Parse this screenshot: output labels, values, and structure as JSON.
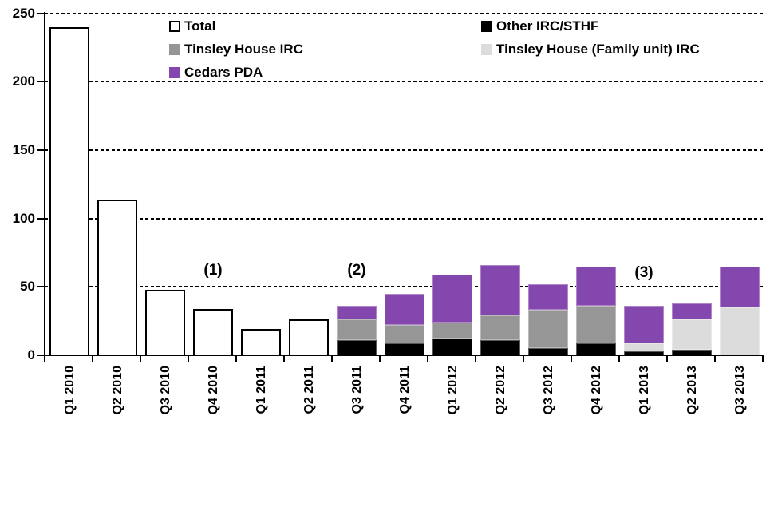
{
  "chart_data": {
    "type": "bar",
    "stacked": true,
    "title": "",
    "xlabel": "",
    "ylabel": "",
    "ylim": [
      0,
      250
    ],
    "yticks": [
      0,
      50,
      100,
      150,
      200,
      250
    ],
    "grid": "horizontal-dashed",
    "categories": [
      "Q1 2010",
      "Q2 2010",
      "Q3 2010",
      "Q4 2010",
      "Q1 2011",
      "Q2 2011",
      "Q3 2011",
      "Q4 2011",
      "Q1 2012",
      "Q2 2012",
      "Q3 2012",
      "Q4 2012",
      "Q1 2013",
      "Q2 2013",
      "Q3 2013"
    ],
    "series": [
      {
        "name": "Total",
        "color": "#ffffff",
        "border_color": "#000000",
        "values": [
          240,
          114,
          48,
          34,
          19,
          26,
          0,
          0,
          0,
          0,
          0,
          0,
          0,
          0,
          0
        ]
      },
      {
        "name": "Other IRC/STHF",
        "color": "#000000",
        "values": [
          0,
          0,
          0,
          0,
          0,
          0,
          11,
          9,
          12,
          11,
          5,
          9,
          3,
          4,
          0
        ]
      },
      {
        "name": "Tinsley House IRC",
        "color": "#969696",
        "values": [
          0,
          0,
          0,
          0,
          0,
          0,
          15,
          13,
          12,
          18,
          28,
          27,
          0,
          0,
          0
        ]
      },
      {
        "name": "Tinsley House (Family unit) IRC",
        "color": "#dcdcdc",
        "values": [
          0,
          0,
          0,
          0,
          0,
          0,
          0,
          0,
          0,
          0,
          0,
          0,
          6,
          22,
          35
        ]
      },
      {
        "name": "Cedars PDA",
        "color": "#8447ad",
        "values": [
          0,
          0,
          0,
          0,
          0,
          0,
          10,
          23,
          35,
          37,
          19,
          29,
          27,
          12,
          30
        ]
      }
    ],
    "annotations": [
      {
        "text": "(1)",
        "category": "Q4 2010",
        "y_value": 62
      },
      {
        "text": "(2)",
        "category": "Q3 2011",
        "y_value": 62
      },
      {
        "text": "(3)",
        "category": "Q1 2013",
        "y_value": 60
      }
    ],
    "legend": {
      "position": "top",
      "columns": [
        {
          "items": [
            {
              "label": "Total",
              "color": "#ffffff",
              "border": "#000000"
            },
            {
              "label": "Tinsley House IRC",
              "color": "#969696"
            },
            {
              "label": "Cedars PDA",
              "color": "#8447ad"
            }
          ]
        },
        {
          "items": [
            {
              "label": "Other IRC/STHF",
              "color": "#000000"
            },
            {
              "label": "Tinsley House (Family unit) IRC",
              "color": "#dcdcdc"
            }
          ]
        }
      ]
    }
  }
}
